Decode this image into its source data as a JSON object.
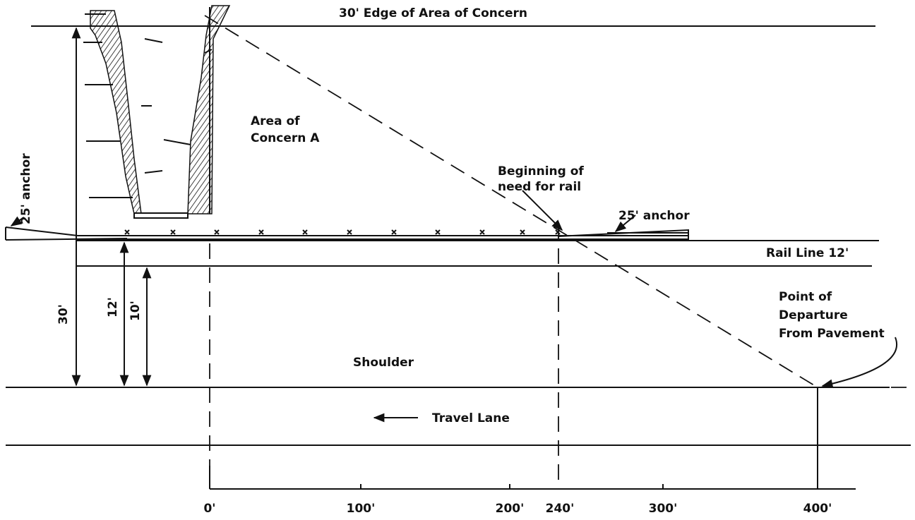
{
  "title": "30' Edge of Area of Concern",
  "area": [
    "Area of",
    "Concern A"
  ],
  "left_anchor": "25' anchor",
  "beginning": [
    "Beginning of",
    "need for rail"
  ],
  "right_anchor": "25' anchor",
  "rail_line": "Rail Line 12'",
  "dimensions": [
    "30'",
    "12'",
    "10'"
  ],
  "departure": [
    "Point of",
    "Departure",
    "From Pavement"
  ],
  "shoulder": "Shoulder",
  "travel_lane": "Travel Lane",
  "axis_labels": [
    "0'",
    "100'",
    "200'",
    "240'",
    "300'",
    "400'"
  ]
}
